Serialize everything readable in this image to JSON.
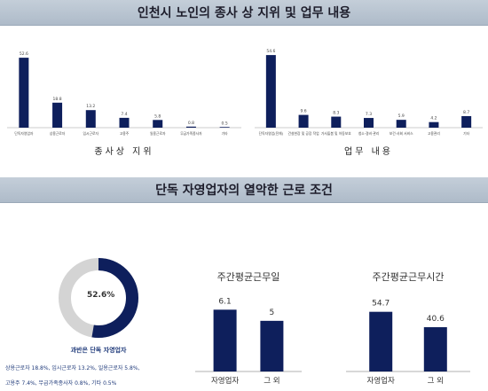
{
  "banners": {
    "top": "인천시 노인의 종사 상 지위 및 업무 내용",
    "middle": "단독 자영업자의 열악한 근로 조건"
  },
  "colors": {
    "bar": "#0e1f5c",
    "donut_gray": "#d4d4d4",
    "banner_bg": "#b8c4d1"
  },
  "chart_data": [
    {
      "type": "bar",
      "xlabel": "종사상 지위",
      "categories": [
        "단독자영업자",
        "상용근로자",
        "임시근로자",
        "고용주",
        "일용근로자",
        "무급가족종사자",
        "기타"
      ],
      "values": [
        52.6,
        18.8,
        13.2,
        7.4,
        5.8,
        0.8,
        0.5
      ],
      "ylim": [
        0,
        60
      ]
    },
    {
      "type": "bar",
      "xlabel": "업무 내용",
      "categories": [
        "단독자영업(전체)",
        "건설현장 및 공장 작업",
        "가사돌봄 및 아동보호",
        "청소·경비·관리",
        "보건·사회 서비스",
        "고용관리",
        "기타"
      ],
      "values": [
        54.6,
        9.6,
        8.3,
        7.3,
        5.9,
        4.2,
        8.7
      ],
      "ylim": [
        0,
        60
      ]
    },
    {
      "type": "pie",
      "center_label": "52.6%",
      "caption": "과반은 단독 자영업자",
      "values": [
        52.6,
        47.4
      ],
      "legend_lines": [
        "상용근로자 18.8%, 임시근로자 13.2%, 일용근로자 5.8%,",
        "고용주 7.4%, 무급가족종사자 0.8%, 기타 0.5%"
      ]
    },
    {
      "type": "bar",
      "title": "주간평균근무일",
      "categories": [
        "자영업자",
        "그 외"
      ],
      "values": [
        6.1,
        5
      ],
      "labels": [
        "6.1",
        "5"
      ],
      "ylim": [
        0,
        7
      ]
    },
    {
      "type": "bar",
      "title": "주간평균근무시간",
      "categories": [
        "자영업자",
        "그 외"
      ],
      "values": [
        54.7,
        40.6
      ],
      "labels": [
        "54.7",
        "40.6"
      ],
      "ylim": [
        0,
        65
      ]
    }
  ]
}
